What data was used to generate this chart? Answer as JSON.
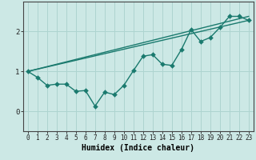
{
  "xlabel": "Humidex (Indice chaleur)",
  "bg_color": "#cce8e5",
  "line_color": "#1a7a6e",
  "grid_color": "#aed4d0",
  "xlim": [
    -0.5,
    23.5
  ],
  "ylim": [
    -0.5,
    2.75
  ],
  "yticks": [
    0,
    1,
    2
  ],
  "xticks": [
    0,
    1,
    2,
    3,
    4,
    5,
    6,
    7,
    8,
    9,
    10,
    11,
    12,
    13,
    14,
    15,
    16,
    17,
    18,
    19,
    20,
    21,
    22,
    23
  ],
  "line1_x": [
    0,
    1,
    2,
    3,
    4,
    5,
    6,
    7,
    8,
    9,
    10,
    11,
    12,
    13,
    14,
    15,
    16,
    17,
    18,
    19,
    20,
    21,
    22,
    23
  ],
  "line1_y": [
    1.0,
    0.85,
    0.65,
    0.68,
    0.68,
    0.5,
    0.52,
    0.13,
    0.48,
    0.42,
    0.65,
    1.02,
    1.38,
    1.42,
    1.18,
    1.15,
    1.55,
    2.05,
    1.75,
    1.85,
    2.1,
    2.38,
    2.38,
    2.28
  ],
  "line2_x": [
    0,
    23
  ],
  "line2_y": [
    1.0,
    2.38
  ],
  "line3_x": [
    0,
    23
  ],
  "line3_y": [
    1.0,
    2.28
  ],
  "marker_size": 3,
  "line_width": 1.0,
  "tick_fontsize": 5.5,
  "label_fontsize": 7
}
